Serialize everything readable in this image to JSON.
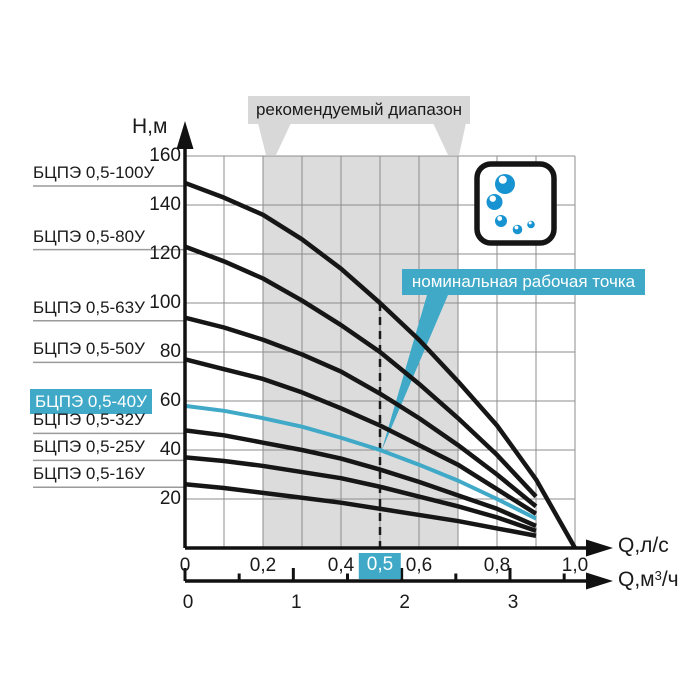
{
  "axes": {
    "y_label": "Н,м",
    "x1_label": "Q,л/с",
    "x2_label_prefix": "Q,м",
    "x2_label_sup": "3",
    "x2_label_suffix": "/ч",
    "y_ticks": [
      {
        "h": 160,
        "label": "160"
      },
      {
        "h": 140,
        "label": "140"
      },
      {
        "h": 120,
        "label": "120"
      },
      {
        "h": 100,
        "label": "100"
      },
      {
        "h": 80,
        "label": "80"
      },
      {
        "h": 60,
        "label": "60"
      },
      {
        "h": 40,
        "label": "40"
      },
      {
        "h": 20,
        "label": "20"
      }
    ],
    "x1_ticks": [
      {
        "q": 0,
        "label": "0",
        "highlighted": false
      },
      {
        "q": 0.2,
        "label": "0,2",
        "highlighted": false
      },
      {
        "q": 0.4,
        "label": "0,4",
        "highlighted": false
      },
      {
        "q": 0.5,
        "label": "0,5",
        "highlighted": true
      },
      {
        "q": 0.6,
        "label": "0,6",
        "highlighted": false
      },
      {
        "q": 0.8,
        "label": "0,8",
        "highlighted": false
      },
      {
        "q": 1.0,
        "label": "1,0",
        "highlighted": false
      }
    ],
    "x2_ticks": [
      {
        "v": 0,
        "label": "0"
      },
      {
        "v": 0.5,
        "label": ""
      },
      {
        "v": 1,
        "label": "1"
      },
      {
        "v": 1.5,
        "label": ""
      },
      {
        "v": 2,
        "label": "2"
      },
      {
        "v": 2.5,
        "label": ""
      },
      {
        "v": 3,
        "label": "3"
      },
      {
        "v": 3.5,
        "label": ""
      }
    ]
  },
  "callouts": {
    "recommended_range": "рекомендуемый диапазон",
    "nominal_point": "номинальная рабочая точка"
  },
  "colors": {
    "accent_cyan": "#3FA9C7",
    "bubble_blue": "#1793D1",
    "band_gray": "#DCDCDC",
    "callout_gray": "#D8D8D8",
    "grid_gray": "#8D8D8D",
    "underline_gray": "#9A9A9A",
    "curve_black": "#161616",
    "text_black": "#1a1a1a"
  },
  "chart_data": {
    "type": "line",
    "title": "",
    "ylabel": "Н,м",
    "xlabel_primary": "Q,л/с",
    "xlabel_secondary": "Q,м³/ч",
    "xlim_l_s": [
      0,
      1.0
    ],
    "xlim_m3_h": [
      0,
      3.6
    ],
    "ylim": [
      0,
      160
    ],
    "grid": true,
    "recommended_range_q": [
      0.2,
      0.7
    ],
    "nominal_point": {
      "q": 0.5,
      "h": 40,
      "series": "БЦПЭ 0,5-40У"
    },
    "series": [
      {
        "name": "БЦПЭ 0,5-100У",
        "highlighted": false,
        "x": [
          0,
          0.1,
          0.2,
          0.3,
          0.4,
          0.5,
          0.6,
          0.7,
          0.8,
          0.9,
          1.0
        ],
        "h": [
          149,
          143,
          136,
          126,
          114,
          100,
          85,
          68,
          50,
          28,
          0
        ]
      },
      {
        "name": "БЦПЭ 0,5-80У",
        "highlighted": false,
        "x": [
          0,
          0.1,
          0.2,
          0.3,
          0.4,
          0.5,
          0.6,
          0.7,
          0.8,
          0.9
        ],
        "h": [
          123,
          117,
          110,
          101,
          91,
          80,
          67,
          53,
          38,
          21
        ]
      },
      {
        "name": "БЦПЭ 0,5-63У",
        "highlighted": false,
        "x": [
          0,
          0.1,
          0.2,
          0.3,
          0.4,
          0.5,
          0.6,
          0.7,
          0.8,
          0.9
        ],
        "h": [
          94,
          90,
          85,
          79,
          72,
          63,
          53,
          42,
          30,
          17
        ]
      },
      {
        "name": "БЦПЭ 0,5-50У",
        "highlighted": false,
        "x": [
          0,
          0.1,
          0.2,
          0.3,
          0.4,
          0.5,
          0.6,
          0.7,
          0.8,
          0.9
        ],
        "h": [
          77,
          73,
          69,
          63.5,
          57,
          50,
          42,
          34,
          24,
          14
        ]
      },
      {
        "name": "БЦПЭ 0,5-40У",
        "highlighted": true,
        "x": [
          0,
          0.1,
          0.2,
          0.3,
          0.4,
          0.5,
          0.6,
          0.7,
          0.8,
          0.9
        ],
        "h": [
          58,
          56,
          53,
          49.5,
          45,
          40,
          34,
          27.5,
          20,
          12
        ]
      },
      {
        "name": "БЦПЭ 0,5-32У",
        "highlighted": false,
        "x": [
          0,
          0.1,
          0.2,
          0.3,
          0.4,
          0.5,
          0.6,
          0.7,
          0.8,
          0.9
        ],
        "h": [
          48,
          46,
          43,
          40,
          36.5,
          32,
          27,
          21.5,
          16,
          9
        ]
      },
      {
        "name": "БЦПЭ 0,5-25У",
        "highlighted": false,
        "x": [
          0,
          0.1,
          0.2,
          0.3,
          0.4,
          0.5,
          0.6,
          0.7,
          0.8,
          0.9
        ],
        "h": [
          37,
          35.5,
          33.5,
          31,
          28.5,
          25,
          21,
          17,
          12.5,
          7
        ]
      },
      {
        "name": "БЦПЭ 0,5-16У",
        "highlighted": false,
        "x": [
          0,
          0.1,
          0.2,
          0.3,
          0.4,
          0.5,
          0.6,
          0.7,
          0.8,
          0.9
        ],
        "h": [
          26,
          24.5,
          22.5,
          20.5,
          18.5,
          16,
          13.5,
          11,
          8,
          5
        ]
      }
    ]
  }
}
